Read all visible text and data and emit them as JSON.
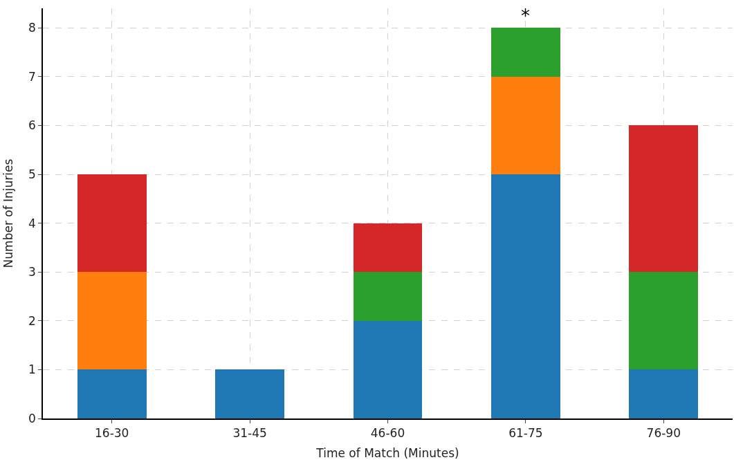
{
  "chart_data": {
    "type": "bar",
    "stacked": true,
    "xlabel": "Time of Match (Minutes)",
    "ylabel": "Number of Injuries",
    "categories": [
      "16-30",
      "31-45",
      "46-60",
      "61-75",
      "76-90"
    ],
    "series": [
      {
        "color": "#1f77b4",
        "values": [
          1,
          1,
          2,
          5,
          1
        ]
      },
      {
        "color": "#ff7f0e",
        "values": [
          2,
          0,
          0,
          2,
          0
        ]
      },
      {
        "color": "#2ca02c",
        "values": [
          0,
          0,
          1,
          1,
          2
        ]
      },
      {
        "color": "#d62728",
        "values": [
          2,
          0,
          1,
          0,
          3
        ]
      }
    ],
    "ylim": [
      0,
      8.4
    ],
    "yticks": [
      0,
      1,
      2,
      3,
      4,
      5,
      6,
      7,
      8
    ],
    "grid": true,
    "annotations": [
      {
        "text": "*",
        "x": "61-75",
        "y": 8
      }
    ]
  }
}
